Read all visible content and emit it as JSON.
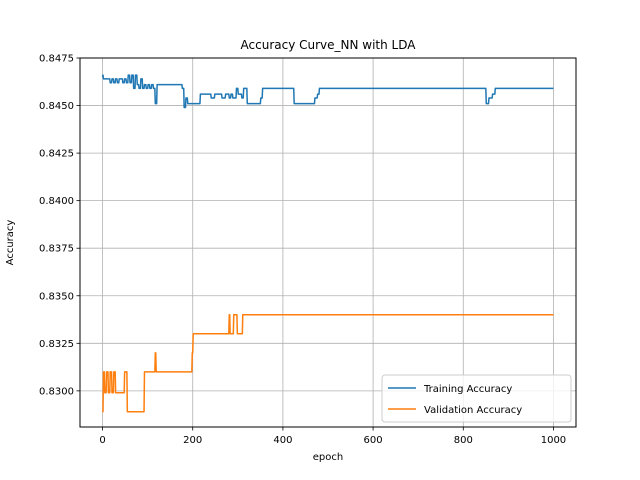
{
  "chart_data": {
    "type": "line",
    "title": "Accuracy Curve_NN with LDA",
    "xlabel": "epoch",
    "ylabel": "Accuracy",
    "xlim": [
      -50,
      1050
    ],
    "ylim": [
      0.8281,
      0.8475
    ],
    "xticks": [
      0,
      200,
      400,
      600,
      800,
      1000
    ],
    "yticks": [
      0.83,
      0.8325,
      0.835,
      0.8375,
      0.84,
      0.8425,
      0.845,
      0.8475
    ],
    "ytick_labels": [
      "0.8300",
      "0.8325",
      "0.8350",
      "0.8375",
      "0.8400",
      "0.8425",
      "0.8450",
      "0.8475"
    ],
    "grid": true,
    "legend_position": "lower-right",
    "series": [
      {
        "name": "Training Accuracy",
        "color": "#1f77b4",
        "x": [
          0,
          1,
          2,
          16,
          17,
          20,
          21,
          24,
          25,
          28,
          29,
          32,
          33,
          36,
          37,
          44,
          45,
          48,
          49,
          52,
          53,
          56,
          57,
          60,
          61,
          64,
          65,
          68,
          69,
          72,
          73,
          76,
          77,
          80,
          81,
          84,
          85,
          88,
          89,
          92,
          93,
          96,
          97,
          100,
          101,
          104,
          105,
          108,
          109,
          112,
          113,
          116,
          117,
          120,
          121,
          176,
          177,
          180,
          181,
          184,
          185,
          188,
          189,
          192,
          193,
          216,
          217,
          240,
          241,
          248,
          249,
          264,
          265,
          272,
          273,
          280,
          281,
          284,
          285,
          288,
          289,
          296,
          297,
          300,
          301,
          308,
          309,
          312,
          313,
          320,
          321,
          328,
          329,
          350,
          351,
          354,
          355,
          424,
          425,
          470,
          471,
          476,
          477,
          480,
          481,
          850,
          851,
          856,
          857,
          864,
          865,
          870,
          871,
          1000
        ],
        "y": [
          0.8465,
          0.8466,
          0.8464,
          0.8464,
          0.8462,
          0.8462,
          0.8464,
          0.8464,
          0.8462,
          0.8462,
          0.8464,
          0.8464,
          0.8462,
          0.8462,
          0.8464,
          0.8464,
          0.8462,
          0.8462,
          0.8464,
          0.8464,
          0.8462,
          0.8462,
          0.8466,
          0.8466,
          0.8462,
          0.8462,
          0.8466,
          0.8466,
          0.8459,
          0.8459,
          0.8466,
          0.8466,
          0.8461,
          0.8461,
          0.8459,
          0.8459,
          0.8464,
          0.8464,
          0.8459,
          0.8459,
          0.8461,
          0.8461,
          0.8459,
          0.8459,
          0.8461,
          0.8461,
          0.8459,
          0.8459,
          0.8461,
          0.8461,
          0.8459,
          0.8459,
          0.8451,
          0.8451,
          0.8461,
          0.8461,
          0.8459,
          0.8459,
          0.8449,
          0.8449,
          0.8454,
          0.8454,
          0.8451,
          0.8451,
          0.8451,
          0.8451,
          0.8456,
          0.8456,
          0.8454,
          0.8454,
          0.8456,
          0.8456,
          0.8454,
          0.8454,
          0.8456,
          0.8456,
          0.8454,
          0.8454,
          0.8456,
          0.8456,
          0.8454,
          0.8454,
          0.8459,
          0.8459,
          0.8456,
          0.8456,
          0.8454,
          0.8454,
          0.8459,
          0.8459,
          0.8451,
          0.8451,
          0.8451,
          0.8451,
          0.8454,
          0.8454,
          0.8459,
          0.8459,
          0.8451,
          0.8451,
          0.8454,
          0.8454,
          0.8456,
          0.8456,
          0.8459,
          0.8459,
          0.8451,
          0.8451,
          0.8454,
          0.8454,
          0.8456,
          0.8456,
          0.8459,
          0.8459
        ]
      },
      {
        "name": "Validation Accuracy",
        "color": "#ff7f0e",
        "x": [
          0,
          1,
          2,
          4,
          5,
          8,
          9,
          12,
          13,
          16,
          17,
          20,
          21,
          24,
          25,
          28,
          29,
          48,
          49,
          54,
          55,
          58,
          59,
          92,
          93,
          116,
          117,
          118,
          119,
          198,
          199,
          200,
          201,
          206,
          207,
          280,
          281,
          282,
          283,
          290,
          291,
          298,
          299,
          310,
          311,
          316,
          317,
          1000
        ],
        "y": [
          0.8289,
          0.8289,
          0.831,
          0.831,
          0.8299,
          0.8299,
          0.831,
          0.831,
          0.8299,
          0.8299,
          0.831,
          0.831,
          0.8299,
          0.8299,
          0.831,
          0.831,
          0.8299,
          0.8299,
          0.831,
          0.831,
          0.8289,
          0.8289,
          0.8289,
          0.8289,
          0.831,
          0.831,
          0.832,
          0.832,
          0.831,
          0.831,
          0.832,
          0.832,
          0.833,
          0.833,
          0.833,
          0.833,
          0.834,
          0.834,
          0.833,
          0.833,
          0.834,
          0.834,
          0.833,
          0.833,
          0.834,
          0.834,
          0.834,
          0.834
        ]
      }
    ]
  }
}
